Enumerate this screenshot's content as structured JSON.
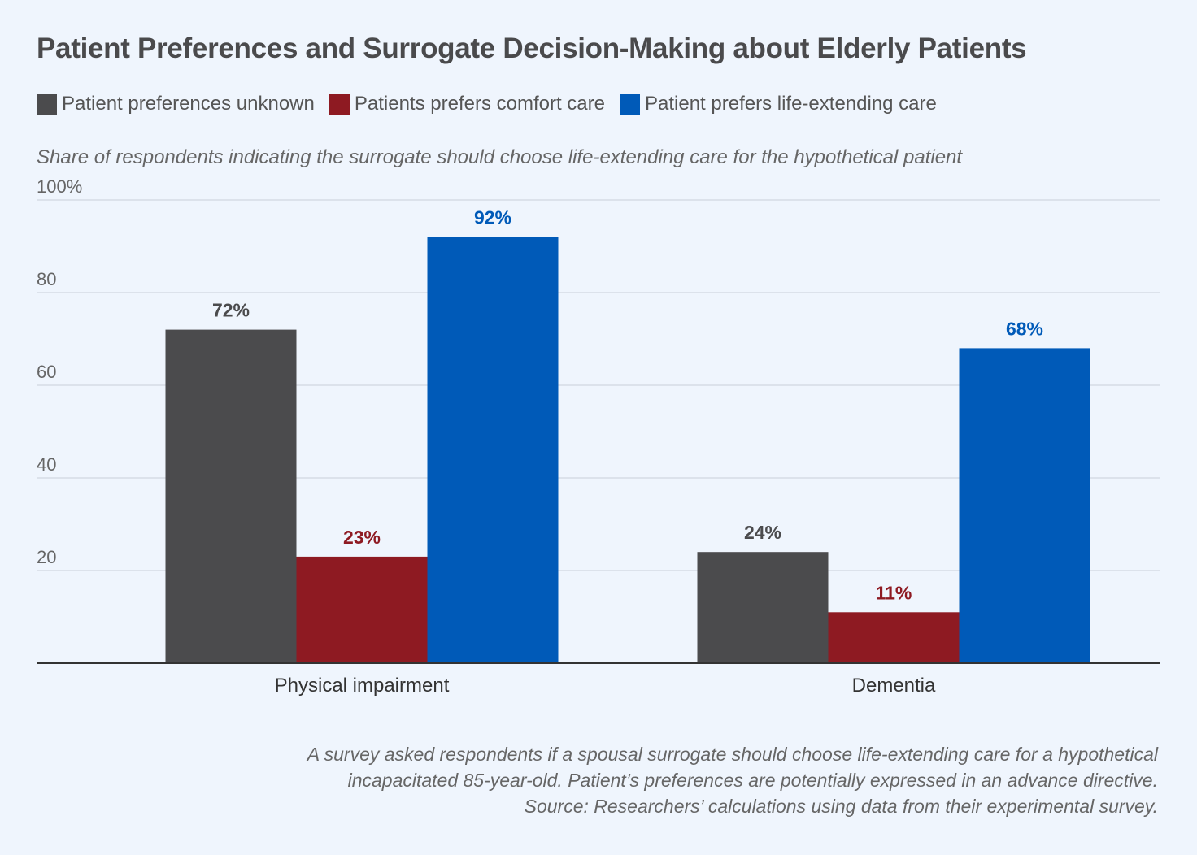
{
  "chart_data": {
    "type": "bar",
    "title": "Patient Preferences and Surrogate Decision-Making about Elderly Patients",
    "subtitle": "Share of respondents indicating the surrogate should choose life-extending care for the hypothetical patient",
    "categories": [
      "Physical impairment",
      "Dementia"
    ],
    "series": [
      {
        "name": "Patient preferences unknown",
        "values": [
          72,
          24
        ],
        "labels": [
          "72%",
          "24%"
        ],
        "color": "#4b4b4d"
      },
      {
        "name": "Patients prefers comfort care",
        "values": [
          23,
          11
        ],
        "labels": [
          "23%",
          "11%"
        ],
        "color": "#8e1a22"
      },
      {
        "name": "Patient prefers life-extending care",
        "values": [
          92,
          68
        ],
        "labels": [
          "92%",
          "68%"
        ],
        "color": "#005ab8"
      }
    ],
    "ylim": [
      0,
      100
    ],
    "yticks": [
      20,
      40,
      60,
      80,
      100
    ],
    "ytick_labels": [
      "20",
      "40",
      "60",
      "80",
      "100%"
    ],
    "grid": true,
    "legend": "top-left",
    "label_colors": [
      "#4b4b4d",
      "#8e1a22",
      "#005ab8"
    ],
    "note": [
      "A survey asked respondents if a spousal surrogate should choose life-extending care for a hypothetical",
      "incapacitated 85-year-old. Patient’s preferences are potentially expressed in an advance directive.",
      "Source: Researchers’ calculations using data from their experimental survey."
    ]
  }
}
